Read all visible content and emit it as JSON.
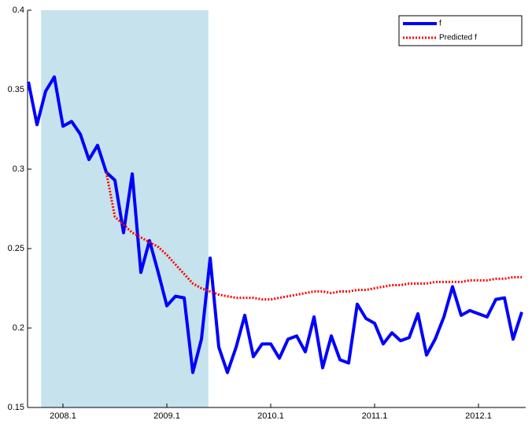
{
  "chart_data": {
    "type": "line",
    "x": [
      2007.667,
      2007.75,
      2007.833,
      2007.917,
      2008,
      2008.083,
      2008.167,
      2008.25,
      2008.333,
      2008.417,
      2008.5,
      2008.583,
      2008.667,
      2008.75,
      2008.833,
      2008.917,
      2009,
      2009.083,
      2009.167,
      2009.25,
      2009.333,
      2009.417,
      2009.5,
      2009.583,
      2009.667,
      2009.75,
      2009.833,
      2009.917,
      2010,
      2010.083,
      2010.167,
      2010.25,
      2010.333,
      2010.417,
      2010.5,
      2010.583,
      2010.667,
      2010.75,
      2010.833,
      2010.917,
      2011,
      2011.083,
      2011.167,
      2011.25,
      2011.333,
      2011.417,
      2011.5,
      2011.583,
      2011.667,
      2011.75,
      2011.833,
      2011.917,
      2012,
      2012.083,
      2012.167,
      2012.25,
      2012.333,
      2012.417
    ],
    "series": [
      {
        "name": "f",
        "color": "#0000ff",
        "line_style": "solid",
        "values": [
          0.355,
          0.328,
          0.349,
          0.358,
          0.327,
          0.33,
          0.322,
          0.306,
          0.315,
          0.298,
          0.293,
          0.26,
          0.297,
          0.235,
          0.255,
          0.235,
          0.214,
          0.22,
          0.219,
          0.172,
          0.193,
          0.244,
          0.188,
          0.172,
          0.188,
          0.208,
          0.182,
          0.19,
          0.19,
          0.181,
          0.193,
          0.195,
          0.185,
          0.207,
          0.175,
          0.195,
          0.18,
          0.178,
          0.215,
          0.206,
          0.203,
          0.19,
          0.197,
          0.192,
          0.194,
          0.209,
          0.183,
          0.193,
          0.207,
          0.226,
          0.208,
          0.211,
          0.209,
          0.207,
          0.218,
          0.219,
          0.193,
          0.21
        ]
      },
      {
        "name": "Predicted f",
        "color": "#ff0000",
        "line_style": "dotted",
        "values": [
          null,
          null,
          null,
          null,
          null,
          null,
          null,
          null,
          null,
          0.298,
          0.27,
          0.265,
          0.26,
          0.257,
          0.254,
          0.251,
          0.246,
          0.24,
          0.234,
          0.228,
          0.225,
          0.223,
          0.221,
          0.22,
          0.219,
          0.219,
          0.219,
          0.218,
          0.218,
          0.219,
          0.22,
          0.221,
          0.222,
          0.223,
          0.223,
          0.222,
          0.223,
          0.223,
          0.224,
          0.224,
          0.225,
          0.226,
          0.227,
          0.227,
          0.228,
          0.228,
          0.228,
          0.229,
          0.229,
          0.229,
          0.229,
          0.23,
          0.23,
          0.23,
          0.231,
          0.231,
          0.232,
          0.232
        ]
      }
    ],
    "xlim": [
      2007.659,
      2012.4545
    ],
    "xticks": [
      {
        "value": 2008,
        "label": "2008.1"
      },
      {
        "value": 2009,
        "label": "2009.1"
      },
      {
        "value": 2010,
        "label": "2010.1"
      },
      {
        "value": 2011,
        "label": "2011.1"
      },
      {
        "value": 2012,
        "label": "2012.1"
      }
    ],
    "ylim": [
      0.15,
      0.4
    ],
    "yticks": [
      0.15,
      0.2,
      0.25,
      0.3,
      0.35,
      0.4
    ],
    "shaded_region": {
      "x": [
        2007.79,
        2009.4
      ],
      "color": "#c6e2ec"
    },
    "legend_loc": "upper right"
  }
}
